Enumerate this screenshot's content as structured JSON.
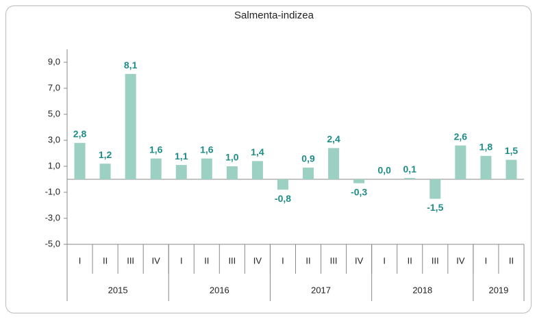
{
  "chart_data": {
    "type": "bar",
    "title": "Salmenta-indizea",
    "categories": [
      "I",
      "II",
      "III",
      "IV",
      "I",
      "II",
      "III",
      "IV",
      "I",
      "II",
      "III",
      "IV",
      "I",
      "II",
      "III",
      "IV",
      "I",
      "II"
    ],
    "groups": [
      {
        "label": "2015",
        "span": 4
      },
      {
        "label": "2016",
        "span": 4
      },
      {
        "label": "2017",
        "span": 4
      },
      {
        "label": "2018",
        "span": 4
      },
      {
        "label": "2019",
        "span": 2
      }
    ],
    "values": [
      2.8,
      1.2,
      8.1,
      1.6,
      1.1,
      1.6,
      1.0,
      1.4,
      -0.8,
      0.9,
      2.4,
      -0.3,
      0.0,
      0.1,
      -1.5,
      2.6,
      1.8,
      1.5
    ],
    "value_labels": [
      "2,8",
      "1,2",
      "8,1",
      "1,6",
      "1,1",
      "1,6",
      "1,0",
      "1,4",
      "-0,8",
      "0,9",
      "2,4",
      "-0,3",
      "0,0",
      "0,1",
      "-1,5",
      "2,6",
      "1,8",
      "1,5"
    ],
    "color": "#9bd0c2",
    "label_color": "#1e8c86",
    "ylim": [
      -5,
      10
    ],
    "yticks": [
      {
        "value": -5,
        "label": "-5,0"
      },
      {
        "value": -3,
        "label": "-3,0"
      },
      {
        "value": -1,
        "label": "-1,0"
      },
      {
        "value": 1,
        "label": "1,0"
      },
      {
        "value": 3,
        "label": "3,0"
      },
      {
        "value": 5,
        "label": "5,0"
      },
      {
        "value": 7,
        "label": "7,0"
      },
      {
        "value": 9,
        "label": "9,0"
      }
    ],
    "grid": false
  }
}
